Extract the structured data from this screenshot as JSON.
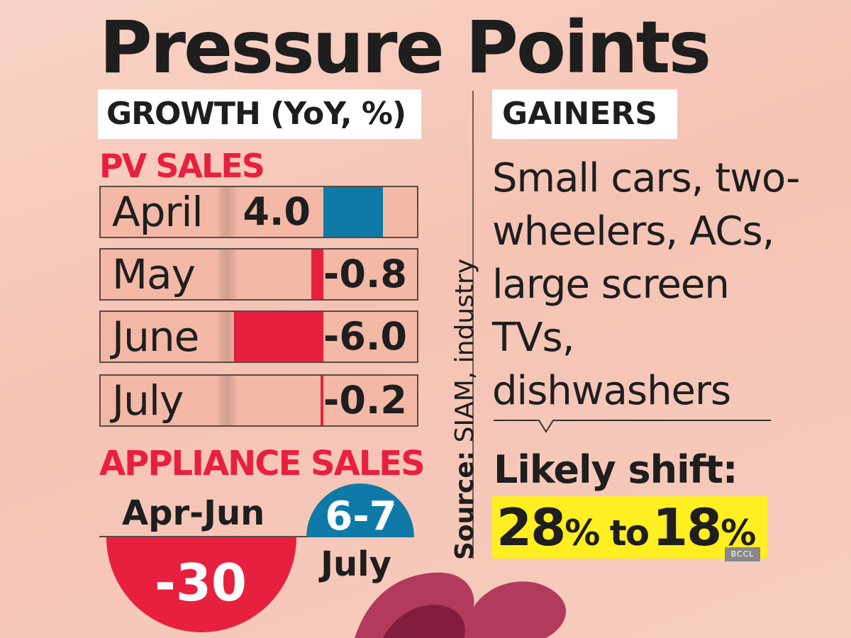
{
  "title": "Pressure Points",
  "growth_label": "GROWTH (YoY, %)",
  "gainers_label": "GAINERS",
  "source": {
    "bold": "Source:",
    "text": " SIAM, industry"
  },
  "gainers_text": "Small cars, two-wheelers, ACs, large screen TVs, dishwashers",
  "likely_shift": {
    "label": "Likely shift:",
    "from_value": "28",
    "to_word": " to ",
    "to_value": "18",
    "unit": "%"
  },
  "watermark": "BCCL",
  "colors": {
    "positive": "#0f7aa8",
    "negative": "#e8203f",
    "heading_red": "#e8203f",
    "highlight": "#ffee22"
  },
  "chart_data": [
    {
      "type": "bar",
      "title": "PV SALES",
      "categories": [
        "April",
        "May",
        "June",
        "July"
      ],
      "values": [
        4.0,
        -0.8,
        -6.0,
        -0.2
      ],
      "value_labels": [
        "4.0",
        "-0.8",
        "-6.0",
        "-0.2"
      ],
      "xlabel": "",
      "ylabel": ""
    },
    {
      "type": "pie",
      "title": "APPLIANCE SALES",
      "categories": [
        "Apr-Jun",
        "July"
      ],
      "values": [
        -30,
        "6-7"
      ],
      "value_labels": [
        "-30",
        "6-7"
      ]
    }
  ]
}
